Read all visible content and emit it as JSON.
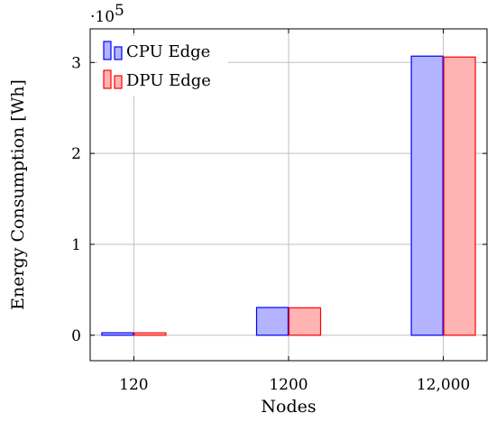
{
  "chart_data": {
    "type": "bar",
    "categories": [
      "120",
      "1200",
      "12,000"
    ],
    "series": [
      {
        "name": "CPU Edge",
        "values": [
          2700,
          30500,
          307000
        ],
        "fill": "#b3b3ff",
        "stroke": "#0000ff"
      },
      {
        "name": "DPU Edge",
        "values": [
          2600,
          30200,
          306000
        ],
        "fill": "#ffb3b3",
        "stroke": "#ff0000"
      }
    ],
    "xlabel": "Nodes",
    "ylabel": "Energy Consumption [Wh]",
    "ylim": [
      -28000,
      337000
    ],
    "yticks": [
      0,
      100000,
      200000,
      300000
    ],
    "ytick_labels": [
      "0",
      "1",
      "2",
      "3"
    ],
    "y_multiplier_label": "·10",
    "y_multiplier_exponent": "5",
    "grid": true,
    "legend_position": "top-left"
  }
}
